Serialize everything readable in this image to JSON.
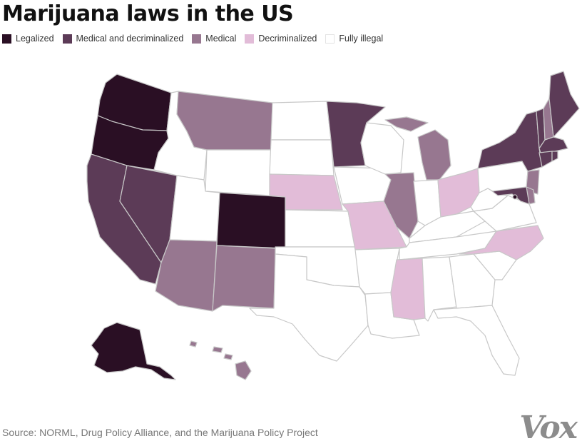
{
  "title": "Marijuana laws in the US",
  "legend": [
    {
      "label": "Legalized",
      "color": "#2a0f24",
      "key": "legalized"
    },
    {
      "label": "Medical and decriminalized",
      "color": "#5c3b57",
      "key": "medical_decrim"
    },
    {
      "label": "Medical",
      "color": "#977790",
      "key": "medical"
    },
    {
      "label": "Decriminalized",
      "color": "#e2bcd8",
      "key": "decrim"
    },
    {
      "label": "Fully illegal",
      "color": "#ffffff",
      "key": "illegal"
    }
  ],
  "source": "Source: NORML, Drug Policy Alliance, and the Marijuana Policy Project",
  "logo": "Vox",
  "colors": {
    "border": "#c8c8c8",
    "legalized": "#2a0f24",
    "medical_decrim": "#5c3b57",
    "medical": "#977790",
    "decrim": "#e2bcd8",
    "illegal": "#ffffff"
  },
  "states": [
    {
      "name": "Washington",
      "status": "legalized"
    },
    {
      "name": "Oregon",
      "status": "legalized"
    },
    {
      "name": "Colorado",
      "status": "legalized"
    },
    {
      "name": "Alaska",
      "status": "legalized"
    },
    {
      "name": "District of Columbia",
      "status": "legalized"
    },
    {
      "name": "California",
      "status": "medical_decrim"
    },
    {
      "name": "Nevada",
      "status": "medical_decrim"
    },
    {
      "name": "Minnesota",
      "status": "medical_decrim"
    },
    {
      "name": "New York",
      "status": "medical_decrim"
    },
    {
      "name": "Maine",
      "status": "medical_decrim"
    },
    {
      "name": "Vermont",
      "status": "medical_decrim"
    },
    {
      "name": "Massachusetts",
      "status": "medical_decrim"
    },
    {
      "name": "Connecticut",
      "status": "medical_decrim"
    },
    {
      "name": "Rhode Island",
      "status": "medical_decrim"
    },
    {
      "name": "Maryland",
      "status": "medical_decrim"
    },
    {
      "name": "Montana",
      "status": "medical"
    },
    {
      "name": "Arizona",
      "status": "medical"
    },
    {
      "name": "New Mexico",
      "status": "medical"
    },
    {
      "name": "Illinois",
      "status": "medical"
    },
    {
      "name": "Michigan",
      "status": "medical"
    },
    {
      "name": "New Hampshire",
      "status": "medical"
    },
    {
      "name": "New Jersey",
      "status": "medical"
    },
    {
      "name": "Delaware",
      "status": "medical"
    },
    {
      "name": "Hawaii",
      "status": "medical"
    },
    {
      "name": "Nebraska",
      "status": "decrim"
    },
    {
      "name": "Missouri",
      "status": "decrim"
    },
    {
      "name": "Ohio",
      "status": "decrim"
    },
    {
      "name": "Mississippi",
      "status": "decrim"
    },
    {
      "name": "North Carolina",
      "status": "decrim"
    },
    {
      "name": "Idaho",
      "status": "illegal"
    },
    {
      "name": "Utah",
      "status": "illegal"
    },
    {
      "name": "Wyoming",
      "status": "illegal"
    },
    {
      "name": "North Dakota",
      "status": "illegal"
    },
    {
      "name": "South Dakota",
      "status": "illegal"
    },
    {
      "name": "Kansas",
      "status": "illegal"
    },
    {
      "name": "Oklahoma",
      "status": "illegal"
    },
    {
      "name": "Texas",
      "status": "illegal"
    },
    {
      "name": "Iowa",
      "status": "illegal"
    },
    {
      "name": "Wisconsin",
      "status": "illegal"
    },
    {
      "name": "Arkansas",
      "status": "illegal"
    },
    {
      "name": "Louisiana",
      "status": "illegal"
    },
    {
      "name": "Indiana",
      "status": "illegal"
    },
    {
      "name": "Kentucky",
      "status": "illegal"
    },
    {
      "name": "Tennessee",
      "status": "illegal"
    },
    {
      "name": "Alabama",
      "status": "illegal"
    },
    {
      "name": "Georgia",
      "status": "illegal"
    },
    {
      "name": "Florida",
      "status": "illegal"
    },
    {
      "name": "South Carolina",
      "status": "illegal"
    },
    {
      "name": "Virginia",
      "status": "illegal"
    },
    {
      "name": "West Virginia",
      "status": "illegal"
    },
    {
      "name": "Pennsylvania",
      "status": "illegal"
    }
  ]
}
